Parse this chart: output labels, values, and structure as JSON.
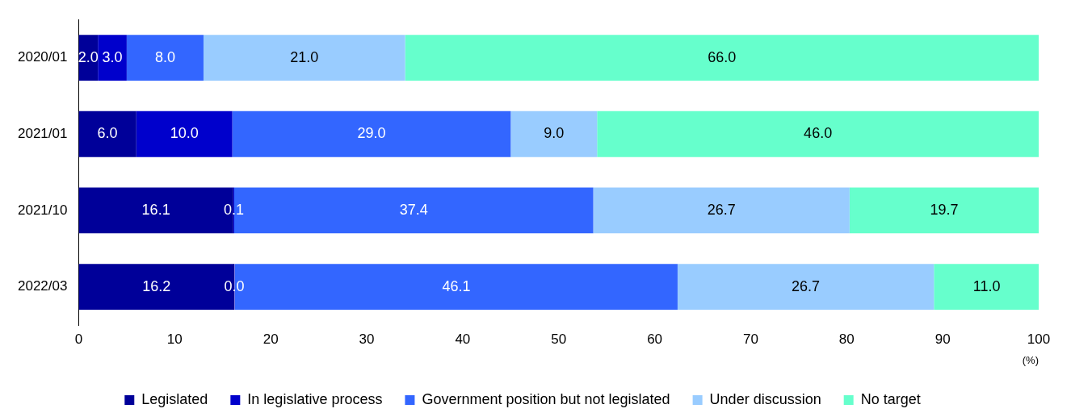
{
  "chart_data": {
    "type": "bar",
    "orientation": "horizontal",
    "stacked": true,
    "categories": [
      "2020/01",
      "2021/01",
      "2021/10",
      "2022/03"
    ],
    "xlabel": "(%)",
    "xlim": [
      0,
      100
    ],
    "xticks": [
      0,
      10,
      20,
      30,
      40,
      50,
      60,
      70,
      80,
      90,
      100
    ],
    "grid": false,
    "legend": "bottom",
    "series": [
      {
        "name": "Legislated",
        "color": "#000099",
        "values": [
          2.0,
          6.0,
          16.1,
          16.2
        ],
        "value_labels": [
          "2.0",
          "6.0",
          "16.1",
          "16.2"
        ]
      },
      {
        "name": "In legislative process",
        "color": "#0000cc",
        "values": [
          3.0,
          10.0,
          0.1,
          0.0
        ],
        "value_labels": [
          "3.0",
          "10.0",
          "0.1",
          "0.0"
        ]
      },
      {
        "name": "Government position but not legislated",
        "color": "#3366ff",
        "values": [
          8.0,
          29.0,
          37.4,
          46.1
        ],
        "value_labels": [
          "8.0",
          "29.0",
          "37.4",
          "46.1"
        ]
      },
      {
        "name": "Under discussion",
        "color": "#99ccff",
        "values": [
          21.0,
          9.0,
          26.7,
          26.7
        ],
        "value_labels": [
          "21.0",
          "9.0",
          "26.7",
          "26.7"
        ]
      },
      {
        "name": "No target",
        "color": "#66ffcc",
        "values": [
          66.0,
          46.0,
          19.7,
          11.0
        ],
        "value_labels": [
          "66.0",
          "46.0",
          "19.7",
          "11.0"
        ]
      }
    ]
  }
}
